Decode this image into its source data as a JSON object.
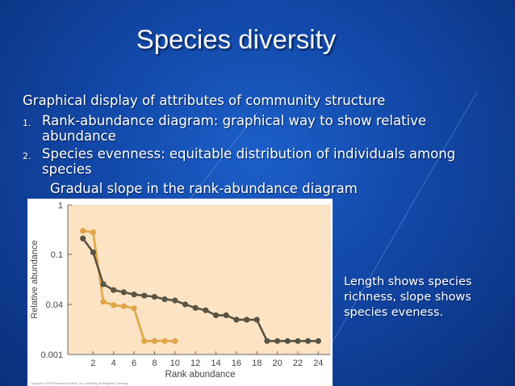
{
  "slide": {
    "title": "Species diversity",
    "intro": "Graphical display of attributes of community structure",
    "items": [
      {
        "num": "1.",
        "line1": "Rank-abundance diagram: graphical way to show relative",
        "line2": "abundance"
      },
      {
        "num": "2.",
        "line1": "Species evenness: equitable distribution of individuals among",
        "line2": "species"
      }
    ],
    "sub_point": "Gradual slope in the rank-abundance diagram",
    "note_lines": [
      "Length shows species",
      "richness, slope shows",
      "species eveness."
    ],
    "copyright": "Copyright © 2008 Pearson Education, Inc., publishing as Benjamin Cummings"
  },
  "colors": {
    "orange_series": "#e0a545",
    "dark_series": "#5a5342",
    "plot_bg": "#fbe3c4"
  },
  "chart_data": {
    "type": "line",
    "xlabel": "Rank abundance",
    "ylabel": "Relative abundance",
    "x_ticks": [
      "2",
      "4",
      "6",
      "8",
      "10",
      "12",
      "14",
      "16",
      "18",
      "20",
      "22",
      "24"
    ],
    "y_ticks": [
      "1",
      "0.1",
      "0.04",
      "0.001"
    ],
    "y_scale": "log",
    "xlim": [
      0,
      25
    ],
    "grid": false,
    "legend": "none",
    "series": [
      {
        "x": [
          1,
          2,
          3,
          4,
          5,
          6,
          7,
          8,
          9,
          10
        ],
        "y": [
          0.3,
          0.28,
          0.042,
          0.038,
          0.035,
          0.03,
          0.0027,
          0.0027,
          0.0027,
          0.0027
        ]
      },
      {
        "x": [
          1,
          2,
          3,
          4,
          5,
          6,
          7,
          8,
          9,
          10,
          11,
          12,
          13,
          14,
          15,
          16,
          17,
          18,
          19,
          20,
          21,
          22,
          23,
          24
        ],
        "y": [
          0.21,
          0.11,
          0.058,
          0.052,
          0.05,
          0.048,
          0.047,
          0.046,
          0.044,
          0.043,
          0.04,
          0.031,
          0.026,
          0.018,
          0.018,
          0.013,
          0.013,
          0.013,
          0.0027,
          0.0027,
          0.0027,
          0.0027,
          0.0027,
          0.0027
        ]
      }
    ]
  }
}
